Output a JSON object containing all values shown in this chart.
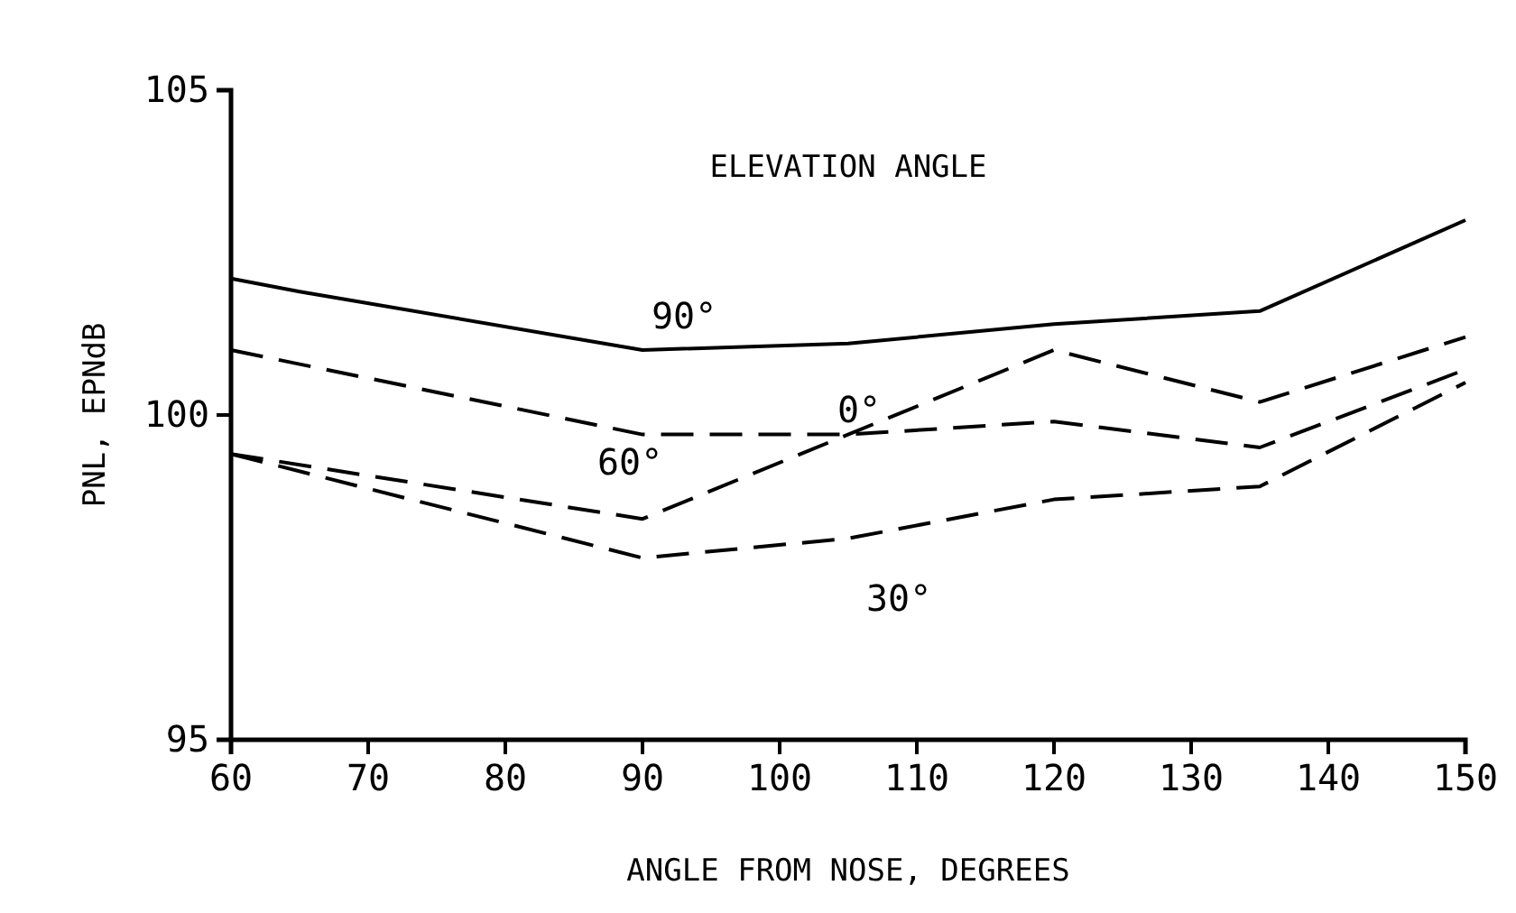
{
  "chart_data": {
    "type": "line",
    "xlabel": "ANGLE FROM NOSE, DEGREES",
    "ylabel": "PNL, EPNdB",
    "xlim": [
      60,
      150
    ],
    "xticks": [
      60,
      70,
      80,
      90,
      100,
      110,
      120,
      130,
      140,
      150
    ],
    "ylim": [
      95,
      105
    ],
    "yticks": [
      95,
      100,
      105
    ],
    "grid": false,
    "legend": false,
    "marker": "none",
    "series": [
      {
        "name": "90°",
        "color": "#000000",
        "line_style": "solid",
        "x": [
          60,
          65,
          90,
          105,
          120,
          135,
          150
        ],
        "values": [
          102.1,
          101.9,
          101.0,
          101.1,
          101.4,
          101.6,
          103.0
        ]
      },
      {
        "name": "60°",
        "color": "#000000",
        "line_style": "dashed",
        "x": [
          60,
          90,
          105,
          120,
          135,
          150
        ],
        "values": [
          101.0,
          99.7,
          99.7,
          99.9,
          99.5,
          100.7
        ]
      },
      {
        "name": "0°",
        "color": "#000000",
        "line_style": "dashed",
        "x": [
          60,
          90,
          120,
          135,
          150
        ],
        "values": [
          99.4,
          98.4,
          101.0,
          100.2,
          101.2
        ]
      },
      {
        "name": "30°",
        "color": "#000000",
        "line_style": "dashed",
        "x": [
          60,
          90,
          105,
          120,
          135,
          150
        ],
        "values": [
          99.4,
          97.8,
          98.1,
          98.7,
          98.9,
          100.5
        ]
      }
    ],
    "annotations": [
      "ELEVATION ANGLE"
    ]
  }
}
